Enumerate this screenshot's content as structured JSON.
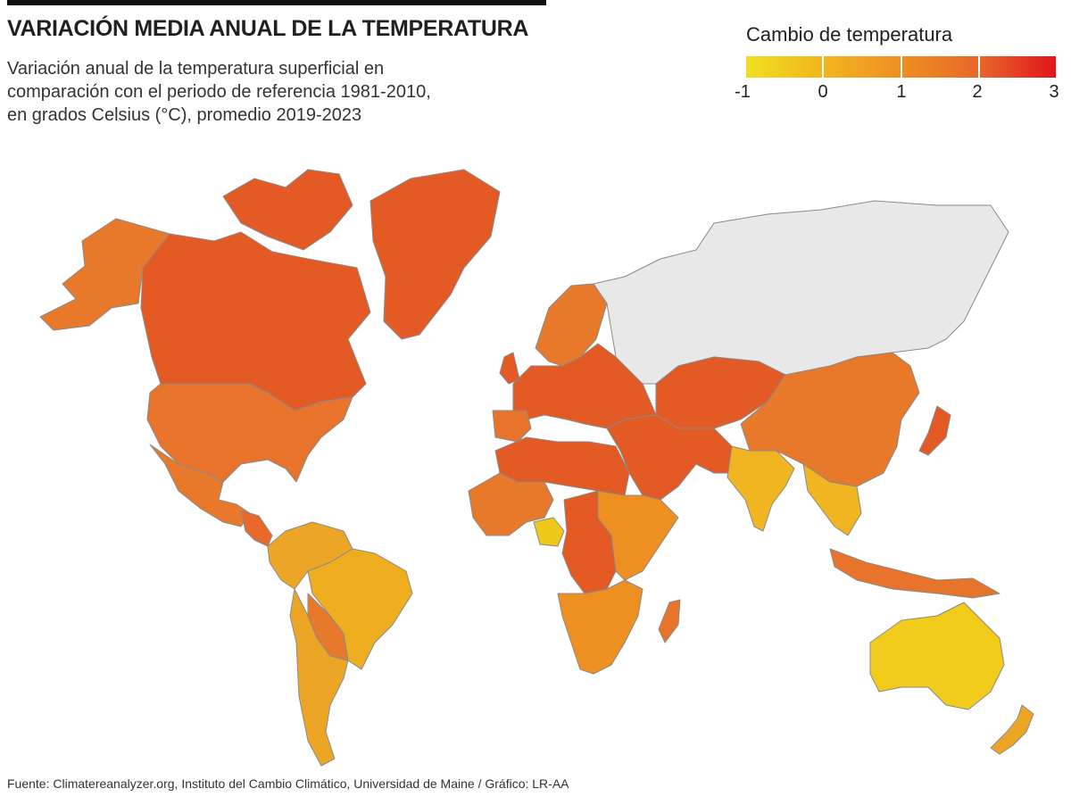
{
  "header": {
    "title": "VARIACIÓN MEDIA ANUAL DE LA TEMPERATURA",
    "subtitle_lines": [
      "Variación anual de la temperatura superficial en",
      "comparación con el periodo de referencia 1981-2010,",
      "en grados Celsius (°C), promedio 2019-2023"
    ]
  },
  "legend": {
    "title": "Cambio de temperatura",
    "ticks": [
      "-1",
      "0",
      "1",
      "2",
      "3"
    ],
    "scale_min": -1,
    "scale_max": 3,
    "colors": [
      "#f0e020",
      "#f2b51e",
      "#ee8f22",
      "#e8672a",
      "#e2151b"
    ]
  },
  "map_colors": {
    "no_data": "#e8e8e8",
    "border": "#8a8a8a"
  },
  "regions": [
    {
      "id": "alaska",
      "fill": "#e8792a"
    },
    {
      "id": "canada",
      "fill": "#e35a24"
    },
    {
      "id": "greenland",
      "fill": "#e35a24"
    },
    {
      "id": "usa",
      "fill": "#e8732a"
    },
    {
      "id": "mexico",
      "fill": "#e8792a"
    },
    {
      "id": "central-america",
      "fill": "#e8672a"
    },
    {
      "id": "south-america-north",
      "fill": "#eda525"
    },
    {
      "id": "brazil",
      "fill": "#efae20"
    },
    {
      "id": "bolivia-paraguay",
      "fill": "#e8792a"
    },
    {
      "id": "argentina-chile",
      "fill": "#eda525"
    },
    {
      "id": "europe-north",
      "fill": "#e8792a"
    },
    {
      "id": "europe",
      "fill": "#e35a24"
    },
    {
      "id": "russia",
      "fill": "#e8e8e8"
    },
    {
      "id": "central-asia",
      "fill": "#e35a24"
    },
    {
      "id": "middle-east",
      "fill": "#e35a24"
    },
    {
      "id": "china",
      "fill": "#e8792a"
    },
    {
      "id": "india",
      "fill": "#f0b521"
    },
    {
      "id": "southeast-asia",
      "fill": "#f0b521"
    },
    {
      "id": "japan",
      "fill": "#e35a24"
    },
    {
      "id": "north-africa",
      "fill": "#e35a24"
    },
    {
      "id": "west-africa",
      "fill": "#e8792a"
    },
    {
      "id": "nigeria",
      "fill": "#f0c81a"
    },
    {
      "id": "central-africa",
      "fill": "#e35a24"
    },
    {
      "id": "east-africa",
      "fill": "#ee8f22"
    },
    {
      "id": "southern-africa",
      "fill": "#ee8f22"
    },
    {
      "id": "madagascar",
      "fill": "#e8732a"
    },
    {
      "id": "indonesia",
      "fill": "#e8732a"
    },
    {
      "id": "australia",
      "fill": "#f2cc1a"
    },
    {
      "id": "new-zealand",
      "fill": "#eda525"
    }
  ],
  "source": "Fuente: Climatereanalyzer.org, Instituto del Cambio Climático, Universidad de Maine / Gráfico: LR-AA"
}
